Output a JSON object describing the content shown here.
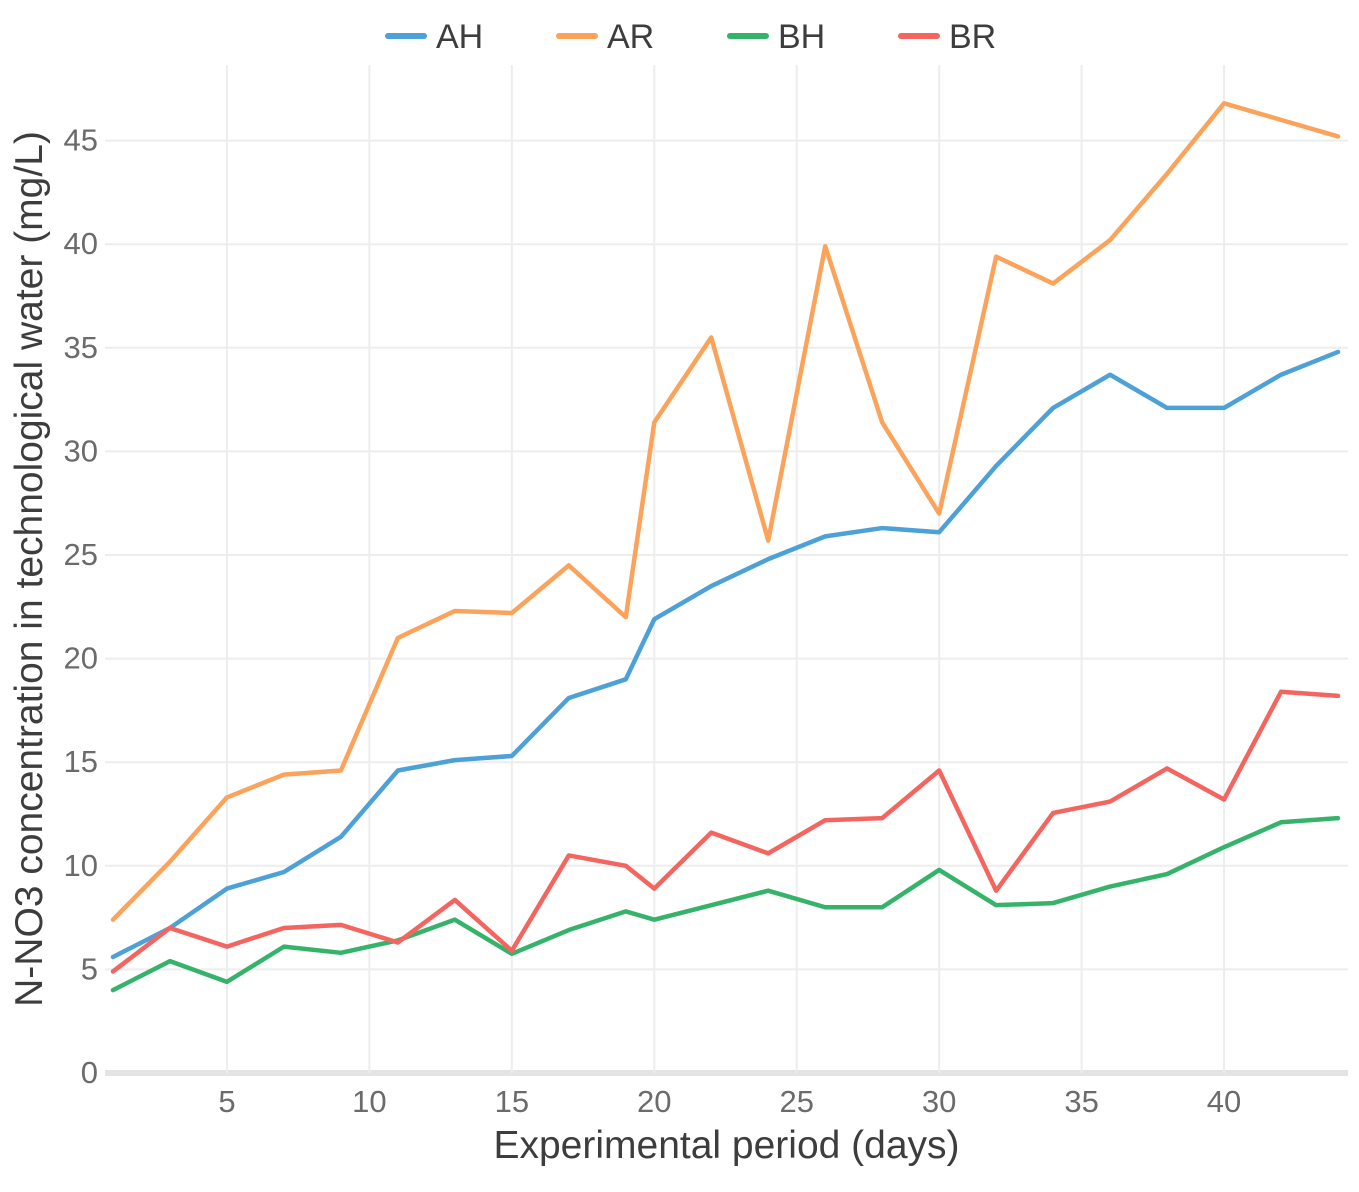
{
  "chart_data": {
    "type": "line",
    "title": "",
    "xlabel": "Experimental period (days)",
    "ylabel": "N-NO3 concentration in technological water (mg/L)",
    "x_ticks": [
      5,
      10,
      15,
      20,
      25,
      30,
      35,
      40
    ],
    "y_ticks": [
      0,
      5,
      10,
      15,
      20,
      25,
      30,
      35,
      40,
      45
    ],
    "xlim": [
      1,
      44
    ],
    "ylim": [
      0,
      48.5
    ],
    "grid": "on",
    "legend_position": "top-center",
    "x": [
      1,
      3,
      5,
      7,
      9,
      11,
      13,
      15,
      17,
      19,
      20,
      22,
      24,
      26,
      28,
      30,
      32,
      34,
      36,
      38,
      40,
      42,
      44
    ],
    "series": [
      {
        "name": "AH",
        "color": "#4da1d7",
        "values": [
          5.6,
          7.0,
          8.9,
          9.7,
          11.4,
          14.6,
          15.1,
          15.3,
          18.1,
          19.0,
          21.9,
          23.5,
          24.8,
          25.9,
          26.3,
          26.1,
          29.3,
          32.1,
          33.7,
          32.1,
          32.1,
          33.7,
          34.8
        ]
      },
      {
        "name": "AR",
        "color": "#fba35a",
        "values": [
          7.4,
          10.2,
          13.3,
          14.4,
          14.6,
          21.0,
          22.3,
          22.2,
          24.5,
          22.0,
          31.4,
          35.5,
          25.7,
          39.9,
          31.4,
          27.0,
          39.4,
          38.1,
          40.2,
          43.4,
          46.8,
          46.0,
          45.2
        ]
      },
      {
        "name": "BH",
        "color": "#36b36a",
        "values": [
          4.0,
          5.4,
          4.4,
          6.1,
          5.8,
          6.4,
          7.4,
          5.75,
          6.9,
          7.8,
          7.4,
          8.1,
          8.8,
          8.0,
          8.0,
          9.8,
          8.1,
          8.2,
          9.0,
          9.6,
          10.9,
          12.1,
          12.3
        ]
      },
      {
        "name": "BR",
        "color": "#f4655f",
        "values": [
          4.9,
          7.0,
          6.1,
          7.0,
          7.15,
          6.3,
          8.35,
          5.9,
          10.5,
          10.0,
          8.9,
          11.6,
          10.6,
          12.2,
          12.3,
          14.6,
          8.8,
          12.55,
          13.1,
          14.7,
          13.2,
          18.4,
          18.2
        ]
      }
    ],
    "style": {
      "grid_color": "#ededed",
      "baseline_color": "#e4e4e4",
      "tick_label_color": "#6b6b6b",
      "axis_title_color": "#3d3d3d",
      "legend_text_color": "#3d3d3d"
    }
  }
}
